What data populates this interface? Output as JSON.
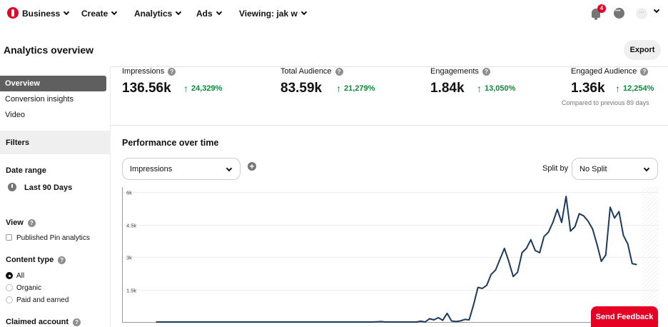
{
  "nav": {
    "business": "Business",
    "create": "Create",
    "analytics": "Analytics",
    "ads": "Ads",
    "viewing": "Viewing: jak w",
    "notifications_count": "4",
    "avatar_text": "···"
  },
  "header": {
    "title": "Analytics overview",
    "export_label": "Export"
  },
  "sidebar": {
    "items": [
      {
        "label": "Overview"
      },
      {
        "label": "Conversion insights"
      },
      {
        "label": "Video"
      }
    ],
    "filters_label": "Filters",
    "date_range_label": "Date range",
    "date_range_value": "Last 90 Days",
    "view_label": "View",
    "view_option": "Published Pin analytics",
    "content_type_label": "Content type",
    "content_types": [
      "All",
      "Organic",
      "Paid and earned"
    ],
    "claimed_account_label": "Claimed account"
  },
  "kpis": [
    {
      "label": "Impressions",
      "value": "136.56k",
      "change": "24,329%"
    },
    {
      "label": "Total Audience",
      "value": "83.59k",
      "change": "21,279%"
    },
    {
      "label": "Engagements",
      "value": "1.84k",
      "change": "13,050%"
    },
    {
      "label": "Engaged Audience",
      "value": "1.36k",
      "change": "12,254%"
    }
  ],
  "compared_text": "Compared to previous 89 days",
  "performance": {
    "title": "Performance over time",
    "metric_select": "Impressions",
    "split_label": "Split by",
    "split_select": "No Split"
  },
  "feedback_label": "Send Feedback",
  "colors": {
    "brand": "#e60023",
    "positive": "#0a8a3a",
    "line": "#1b3a5c"
  },
  "chart_data": {
    "type": "line",
    "title": "",
    "xlabel": "",
    "ylabel": "",
    "y_ticks": [
      "1.5k",
      "3k",
      "4.5k",
      "6k"
    ],
    "ylim": [
      0,
      6000
    ],
    "grid": true,
    "series": [
      {
        "values": [
          0,
          0,
          0,
          0,
          0,
          0,
          0,
          0,
          0,
          0,
          0,
          0,
          0,
          0,
          0,
          0,
          0,
          0,
          0,
          0,
          0,
          0,
          0,
          0,
          0,
          0,
          0,
          0,
          0,
          0,
          0,
          0,
          0,
          0,
          0,
          0,
          0,
          0,
          0,
          0,
          0,
          0,
          0,
          0,
          0,
          0,
          0,
          0,
          0,
          0,
          10,
          20,
          0,
          0,
          0,
          0,
          0,
          0,
          0,
          0,
          40,
          0,
          150,
          100,
          200,
          80,
          400,
          50,
          20,
          50,
          120,
          100,
          800,
          1600,
          1550,
          1700,
          2200,
          2400,
          2900,
          3400,
          2800,
          2100,
          2300,
          3200,
          3400,
          3800,
          3300,
          3200,
          3950,
          4150,
          4600,
          5200,
          4600,
          5800,
          4200,
          4400,
          5000,
          4900,
          4650,
          4300,
          3600,
          2800,
          3100,
          5300,
          4800,
          5100,
          4000,
          3600,
          2700,
          2650
        ]
      }
    ]
  }
}
